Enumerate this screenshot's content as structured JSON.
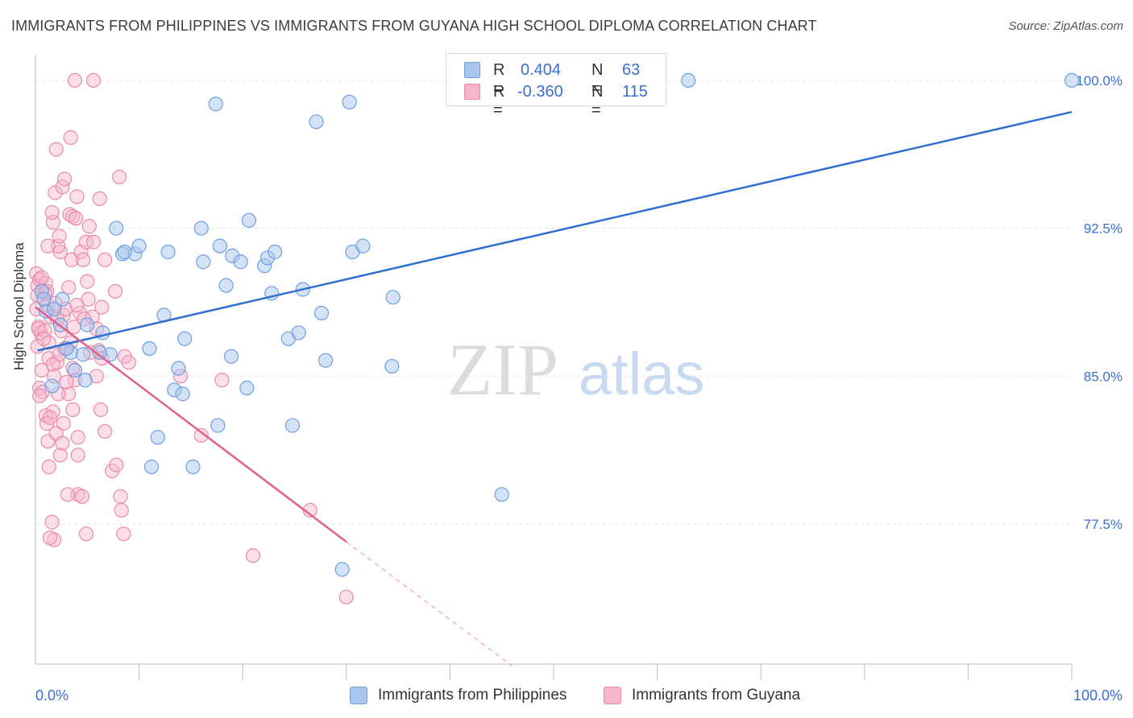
{
  "header": {
    "title": "IMMIGRANTS FROM PHILIPPINES VS IMMIGRANTS FROM GUYANA HIGH SCHOOL DIPLOMA CORRELATION CHART",
    "source": "Source: ZipAtlas.com"
  },
  "watermark": {
    "zip": "ZIP",
    "atlas": "atlas"
  },
  "legend": {
    "rows": [
      {
        "r_label": "R =",
        "r_value": "0.404",
        "n_label": "N =",
        "n_value": "63"
      },
      {
        "r_label": "R =",
        "r_value": "-0.360",
        "n_label": "N =",
        "n_value": "115"
      }
    ]
  },
  "bottom_legend": {
    "philippines": "Immigrants from Philippines",
    "guyana": "Immigrants from Guyana"
  },
  "colors": {
    "blue_fill": "#a9c6ee",
    "blue_stroke": "#6f9fe0",
    "blue_line": "#2f6fcf",
    "pink_fill": "#f6b6c9",
    "pink_stroke": "#ea8aa8",
    "pink_line": "#e0608f",
    "axis_label": "#3a6fd1",
    "grid": "#e3e3e3"
  },
  "chart_data": {
    "type": "scatter",
    "title": "IMMIGRANTS FROM PHILIPPINES VS IMMIGRANTS FROM GUYANA HIGH SCHOOL DIPLOMA CORRELATION CHART",
    "xlabel": "",
    "ylabel": "High School Diploma",
    "xlim": [
      0,
      100
    ],
    "ylim": [
      70.4,
      101.3
    ],
    "x_tick_labels": [
      "0.0%",
      "100.0%"
    ],
    "y_ticks": [
      77.5,
      85.0,
      92.5,
      100.0
    ],
    "y_tick_labels": [
      "77.5%",
      "85.0%",
      "92.5%",
      "100.0%"
    ],
    "grid": true,
    "legend_position": "top-center",
    "series": [
      {
        "name": "Immigrants from Philippines",
        "color": "blue",
        "r": 0.404,
        "n": 63,
        "trend": {
          "x": [
            0.2,
            100
          ],
          "y": [
            86.3,
            98.4
          ]
        },
        "points": [
          [
            0.6,
            89.3
          ],
          [
            1.0,
            88.3
          ],
          [
            0.8,
            88.9
          ],
          [
            1.8,
            88.4
          ],
          [
            2.4,
            87.6
          ],
          [
            3.4,
            86.2
          ],
          [
            4.6,
            86.1
          ],
          [
            5.0,
            87.6
          ],
          [
            3.8,
            85.3
          ],
          [
            4.8,
            84.8
          ],
          [
            7.2,
            86.1
          ],
          [
            6.2,
            86.2
          ],
          [
            1.6,
            84.5
          ],
          [
            3.0,
            86.4
          ],
          [
            7.8,
            92.5
          ],
          [
            8.4,
            91.2
          ],
          [
            9.6,
            91.2
          ],
          [
            10.0,
            91.6
          ],
          [
            12.8,
            91.3
          ],
          [
            11.0,
            86.4
          ],
          [
            12.4,
            88.1
          ],
          [
            14.4,
            86.9
          ],
          [
            13.8,
            85.4
          ],
          [
            13.4,
            84.3
          ],
          [
            14.2,
            84.1
          ],
          [
            11.8,
            81.9
          ],
          [
            11.2,
            80.4
          ],
          [
            15.2,
            80.4
          ],
          [
            16.0,
            92.5
          ],
          [
            16.2,
            90.8
          ],
          [
            17.4,
            98.8
          ],
          [
            17.8,
            91.6
          ],
          [
            18.4,
            89.6
          ],
          [
            19.0,
            91.1
          ],
          [
            19.8,
            90.8
          ],
          [
            20.6,
            92.9
          ],
          [
            18.9,
            86.0
          ],
          [
            20.4,
            84.4
          ],
          [
            17.6,
            82.5
          ],
          [
            22.1,
            90.6
          ],
          [
            22.4,
            91.0
          ],
          [
            22.8,
            89.2
          ],
          [
            23.1,
            91.3
          ],
          [
            24.4,
            86.9
          ],
          [
            25.4,
            87.2
          ],
          [
            25.8,
            89.4
          ],
          [
            27.6,
            88.2
          ],
          [
            28.0,
            85.8
          ],
          [
            24.8,
            82.5
          ],
          [
            27.1,
            97.9
          ],
          [
            30.3,
            98.9
          ],
          [
            30.6,
            91.3
          ],
          [
            31.6,
            91.6
          ],
          [
            34.5,
            89.0
          ],
          [
            34.4,
            85.5
          ],
          [
            29.6,
            75.2
          ],
          [
            45.0,
            79.0
          ],
          [
            60.0,
            100.0
          ],
          [
            63.0,
            100.0
          ],
          [
            100.0,
            100.0
          ],
          [
            8.6,
            91.3
          ],
          [
            6.5,
            87.2
          ],
          [
            2.6,
            88.9
          ]
        ]
      },
      {
        "name": "Immigrants from Guyana",
        "color": "pink",
        "r": -0.36,
        "n": 115,
        "trend": {
          "x": [
            0.0,
            30.0
          ],
          "y": [
            88.5,
            76.6
          ]
        },
        "trend_dashed": {
          "x": [
            30.0,
            46.0
          ],
          "y": [
            76.6,
            70.3
          ]
        },
        "points": [
          [
            0.1,
            90.2
          ],
          [
            0.2,
            89.6
          ],
          [
            0.2,
            89.1
          ],
          [
            0.4,
            89.9
          ],
          [
            0.1,
            88.4
          ],
          [
            0.3,
            87.5
          ],
          [
            0.5,
            87.2
          ],
          [
            0.2,
            86.5
          ],
          [
            0.6,
            85.3
          ],
          [
            0.4,
            84.4
          ],
          [
            0.7,
            84.2
          ],
          [
            0.3,
            87.4
          ],
          [
            0.9,
            87.3
          ],
          [
            1.0,
            89.7
          ],
          [
            1.1,
            89.3
          ],
          [
            1.2,
            88.6
          ],
          [
            1.3,
            86.7
          ],
          [
            1.3,
            85.9
          ],
          [
            1.0,
            83.0
          ],
          [
            1.1,
            82.6
          ],
          [
            1.2,
            81.7
          ],
          [
            1.3,
            80.4
          ],
          [
            1.6,
            77.6
          ],
          [
            1.8,
            76.7
          ],
          [
            1.4,
            76.8
          ],
          [
            1.7,
            83.2
          ],
          [
            1.8,
            85.0
          ],
          [
            2.1,
            85.7
          ],
          [
            2.3,
            86.1
          ],
          [
            2.5,
            87.3
          ],
          [
            2.7,
            88.1
          ],
          [
            2.9,
            88.4
          ],
          [
            3.2,
            89.5
          ],
          [
            2.4,
            91.3
          ],
          [
            2.2,
            91.6
          ],
          [
            1.7,
            92.8
          ],
          [
            1.9,
            94.3
          ],
          [
            2.6,
            94.6
          ],
          [
            2.8,
            95.0
          ],
          [
            2.0,
            96.5
          ],
          [
            3.4,
            97.1
          ],
          [
            3.3,
            93.2
          ],
          [
            3.6,
            93.1
          ],
          [
            3.9,
            93.0
          ],
          [
            4.0,
            94.1
          ],
          [
            3.5,
            90.9
          ],
          [
            4.4,
            91.3
          ],
          [
            4.6,
            90.9
          ],
          [
            4.9,
            91.8
          ],
          [
            5.0,
            89.8
          ],
          [
            5.1,
            88.9
          ],
          [
            4.3,
            88.2
          ],
          [
            4.0,
            88.6
          ],
          [
            3.7,
            87.5
          ],
          [
            3.4,
            86.7
          ],
          [
            3.6,
            85.4
          ],
          [
            3.8,
            84.8
          ],
          [
            3.2,
            84.1
          ],
          [
            3.6,
            83.3
          ],
          [
            2.7,
            82.6
          ],
          [
            2.4,
            81.0
          ],
          [
            4.1,
            81.9
          ],
          [
            4.1,
            81.0
          ],
          [
            4.1,
            79.0
          ],
          [
            4.5,
            78.9
          ],
          [
            4.9,
            77.0
          ],
          [
            3.8,
            100.0
          ],
          [
            5.6,
            100.0
          ],
          [
            6.2,
            94.0
          ],
          [
            8.1,
            95.1
          ],
          [
            5.2,
            92.6
          ],
          [
            5.6,
            91.8
          ],
          [
            6.7,
            90.9
          ],
          [
            7.7,
            89.3
          ],
          [
            6.4,
            88.5
          ],
          [
            5.5,
            88.0
          ],
          [
            5.9,
            87.4
          ],
          [
            6.1,
            86.3
          ],
          [
            6.4,
            85.9
          ],
          [
            5.9,
            85.0
          ],
          [
            6.3,
            83.3
          ],
          [
            6.7,
            82.2
          ],
          [
            7.4,
            80.2
          ],
          [
            7.8,
            80.5
          ],
          [
            8.2,
            78.9
          ],
          [
            8.3,
            78.2
          ],
          [
            8.5,
            77.0
          ],
          [
            8.6,
            86.0
          ],
          [
            9.0,
            85.7
          ],
          [
            14.0,
            85.0
          ],
          [
            16.0,
            82.0
          ],
          [
            18.0,
            84.8
          ],
          [
            21.0,
            75.9
          ],
          [
            26.5,
            78.2
          ],
          [
            30.0,
            73.8
          ],
          [
            1.5,
            88.0
          ],
          [
            2.1,
            87.9
          ],
          [
            0.9,
            89.2
          ],
          [
            0.6,
            90.0
          ],
          [
            1.9,
            88.7
          ],
          [
            2.8,
            86.4
          ],
          [
            3.0,
            84.7
          ],
          [
            1.2,
            91.6
          ],
          [
            1.6,
            93.3
          ],
          [
            2.3,
            92.1
          ],
          [
            4.7,
            87.9
          ],
          [
            5.3,
            86.2
          ],
          [
            0.4,
            84.0
          ],
          [
            1.4,
            82.9
          ],
          [
            2.0,
            82.1
          ],
          [
            2.6,
            81.6
          ],
          [
            3.1,
            79.0
          ],
          [
            0.8,
            86.9
          ],
          [
            1.7,
            85.6
          ],
          [
            2.2,
            84.1
          ]
        ]
      }
    ]
  }
}
